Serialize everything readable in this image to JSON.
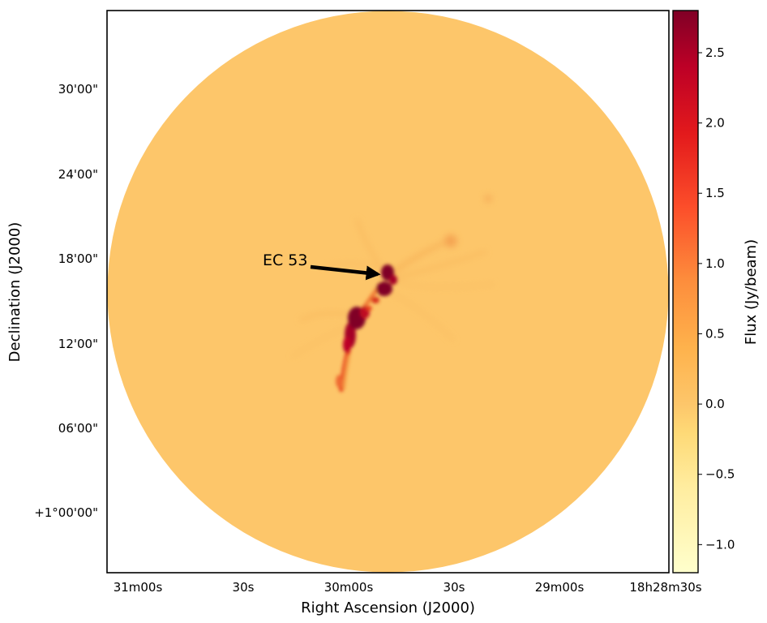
{
  "chart_data": {
    "type": "heatmap",
    "title": "",
    "xlabel": "Right Ascension (J2000)",
    "ylabel": "Declination (J2000)",
    "x_ticks": [
      "31m00s",
      "30s",
      "30m00s",
      "30s",
      "29m00s",
      "18h28m30s"
    ],
    "y_ticks": [
      "30'00\"",
      "24'00\"",
      "18'00\"",
      "12'00\"",
      "06'00\"",
      "+1°00'00\""
    ],
    "grid": false,
    "colormap": "YlOrRd",
    "colorbar": {
      "label": "Flux (Jy/beam)",
      "range": [
        -1.2,
        2.8
      ],
      "ticks": [
        2.5,
        2.0,
        1.5,
        1.0,
        0.5,
        0.0,
        -0.5,
        -1.0
      ],
      "tick_labels": [
        "2.5",
        "2.0",
        "1.5",
        "1.0",
        "0.5",
        "0.0",
        "−0.5",
        "−1.0"
      ],
      "placement": "right"
    },
    "background_level": 0.0,
    "annotation": {
      "text": "EC 53"
    },
    "colors": {
      "map_background": "#fdc66a",
      "emission_mid": "#e8401f",
      "emission_peak": "#800026"
    }
  }
}
